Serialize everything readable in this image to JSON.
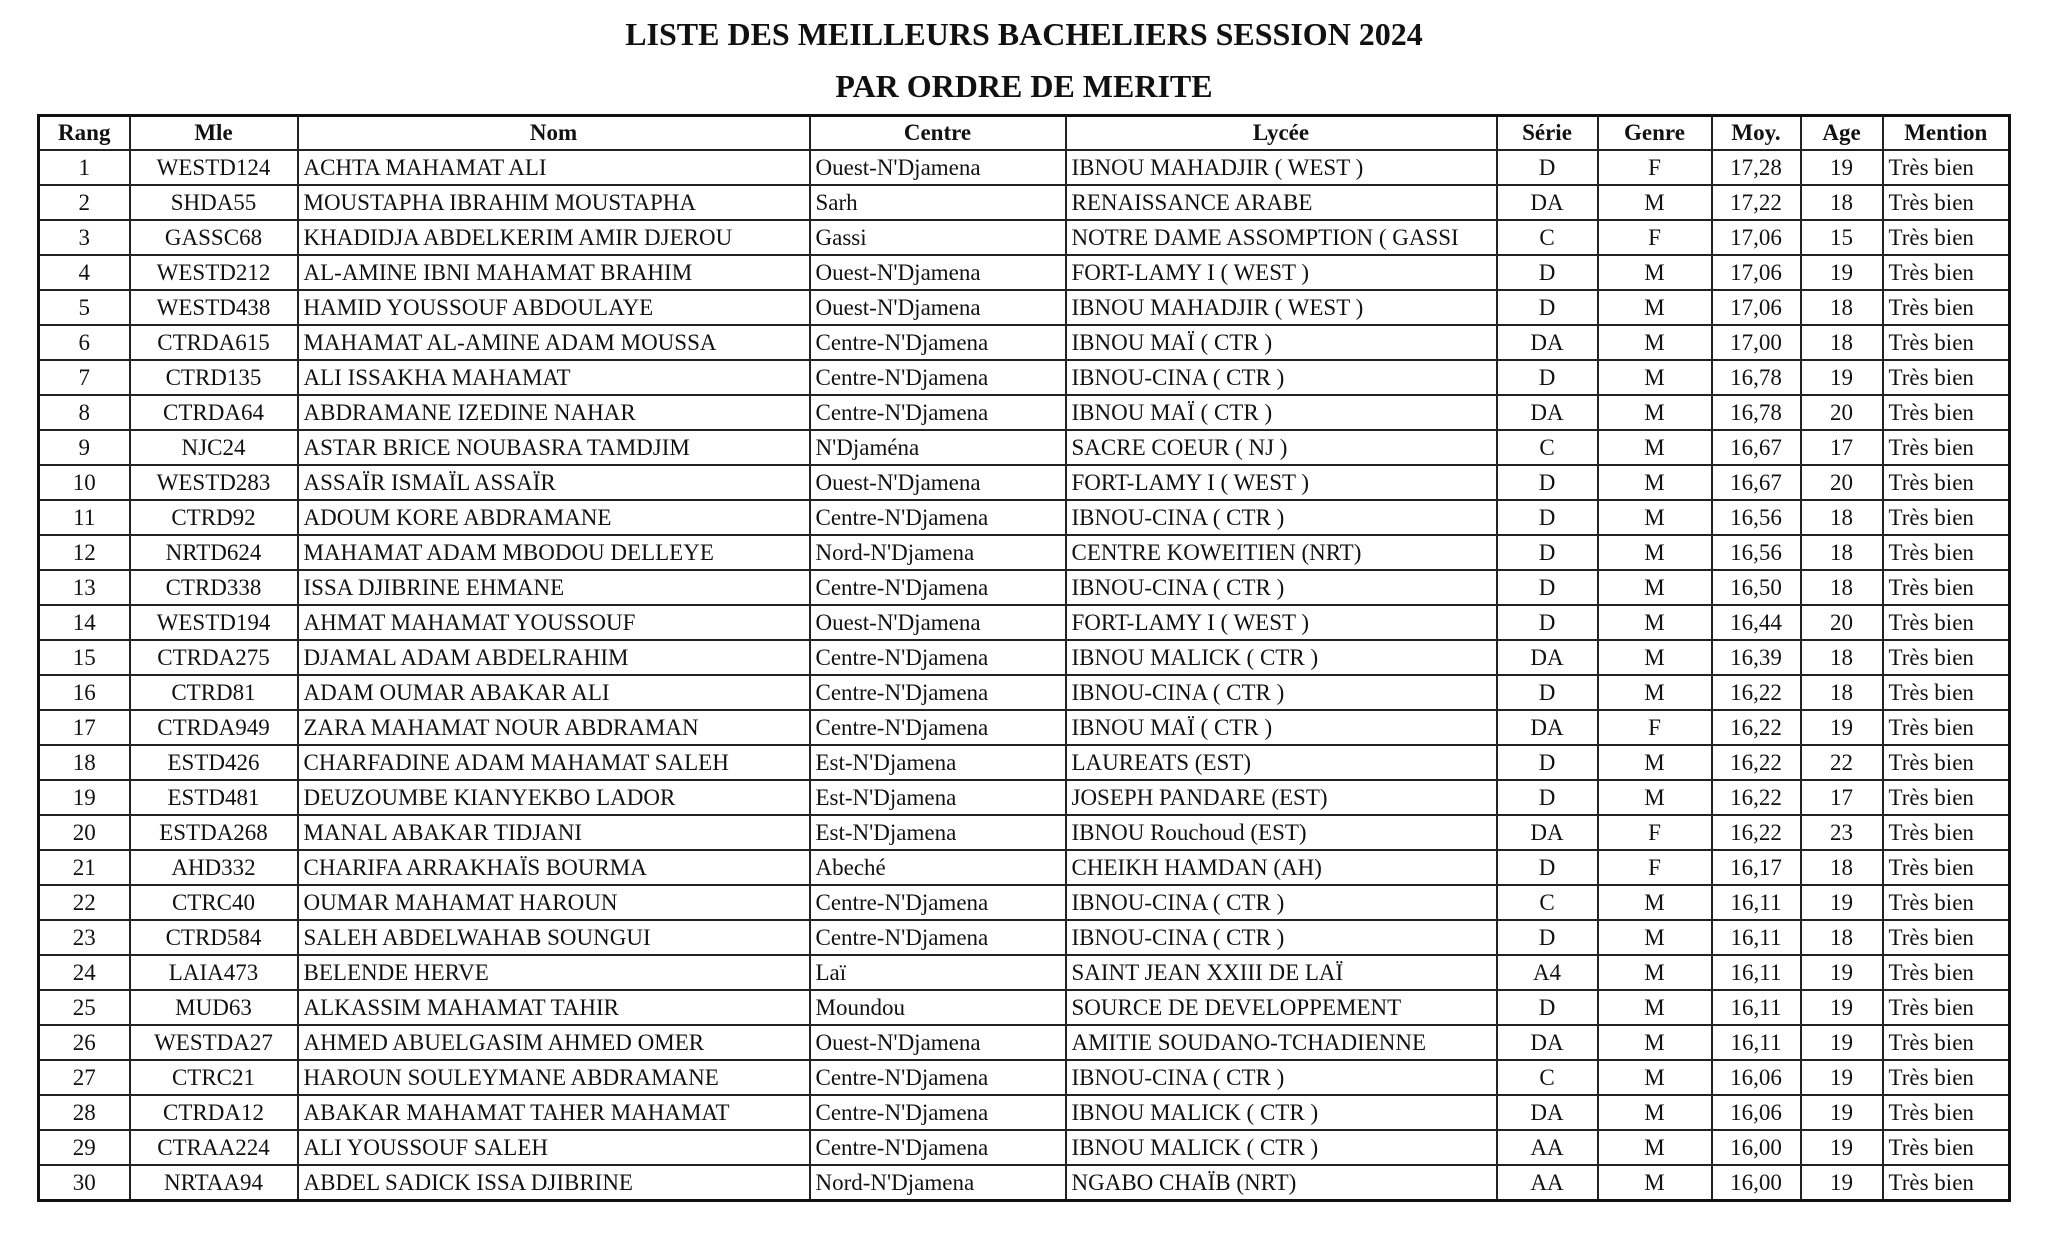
{
  "header": {
    "title": "LISTE DES MEILLEURS BACHELIERS SESSION 2024",
    "subtitle": "PAR ORDRE DE MERITE"
  },
  "table": {
    "columns": [
      "Rang",
      "Mle",
      "Nom",
      "Centre",
      "Lycée",
      "Série",
      "Genre",
      "Moy.",
      "Age",
      "Mention"
    ],
    "rows": [
      [
        "1",
        "WESTD124",
        "ACHTA MAHAMAT ALI",
        "Ouest-N'Djamena",
        "IBNOU MAHADJIR ( WEST )",
        "D",
        "F",
        "17,28",
        "19",
        "Très bien"
      ],
      [
        "2",
        "SHDA55",
        "MOUSTAPHA IBRAHIM MOUSTAPHA",
        "Sarh",
        "RENAISSANCE ARABE",
        "DA",
        "M",
        "17,22",
        "18",
        "Très bien"
      ],
      [
        "3",
        "GASSC68",
        "KHADIDJA ABDELKERIM AMIR DJEROU",
        "Gassi",
        "NOTRE DAME ASSOMPTION ( GASSI",
        "C",
        "F",
        "17,06",
        "15",
        "Très bien"
      ],
      [
        "4",
        "WESTD212",
        "AL-AMINE IBNI MAHAMAT BRAHIM",
        "Ouest-N'Djamena",
        "FORT-LAMY I ( WEST )",
        "D",
        "M",
        "17,06",
        "19",
        "Très bien"
      ],
      [
        "5",
        "WESTD438",
        "HAMID YOUSSOUF ABDOULAYE",
        "Ouest-N'Djamena",
        "IBNOU MAHADJIR ( WEST )",
        "D",
        "M",
        "17,06",
        "18",
        "Très bien"
      ],
      [
        "6",
        "CTRDA615",
        "MAHAMAT AL-AMINE ADAM MOUSSA",
        "Centre-N'Djamena",
        "IBNOU MAÏ  ( CTR )",
        "DA",
        "M",
        "17,00",
        "18",
        "Très bien"
      ],
      [
        "7",
        "CTRD135",
        "ALI ISSAKHA MAHAMAT",
        "Centre-N'Djamena",
        "IBNOU-CINA ( CTR )",
        "D",
        "M",
        "16,78",
        "19",
        "Très bien"
      ],
      [
        "8",
        "CTRDA64",
        "ABDRAMANE IZEDINE NAHAR",
        "Centre-N'Djamena",
        "IBNOU MAÏ  ( CTR )",
        "DA",
        "M",
        "16,78",
        "20",
        "Très bien"
      ],
      [
        "9",
        "NJC24",
        "ASTAR BRICE NOUBASRA TAMDJIM",
        "N'Djaména",
        "SACRE COEUR ( NJ )",
        "C",
        "M",
        "16,67",
        "17",
        "Très bien"
      ],
      [
        "10",
        "WESTD283",
        "ASSAÏR ISMAÏL ASSAÏR",
        "Ouest-N'Djamena",
        "FORT-LAMY I ( WEST )",
        "D",
        "M",
        "16,67",
        "20",
        "Très bien"
      ],
      [
        "11",
        "CTRD92",
        "ADOUM KORE ABDRAMANE",
        "Centre-N'Djamena",
        "IBNOU-CINA ( CTR )",
        "D",
        "M",
        "16,56",
        "18",
        "Très bien"
      ],
      [
        "12",
        "NRTD624",
        "MAHAMAT ADAM MBODOU DELLEYE",
        "Nord-N'Djamena",
        "CENTRE KOWEITIEN (NRT)",
        "D",
        "M",
        "16,56",
        "18",
        "Très bien"
      ],
      [
        "13",
        "CTRD338",
        "ISSA DJIBRINE EHMANE",
        "Centre-N'Djamena",
        "IBNOU-CINA ( CTR )",
        "D",
        "M",
        "16,50",
        "18",
        "Très bien"
      ],
      [
        "14",
        "WESTD194",
        "AHMAT MAHAMAT YOUSSOUF",
        "Ouest-N'Djamena",
        "FORT-LAMY I ( WEST )",
        "D",
        "M",
        "16,44",
        "20",
        "Très bien"
      ],
      [
        "15",
        "CTRDA275",
        "DJAMAL ADAM ABDELRAHIM",
        "Centre-N'Djamena",
        "IBNOU MALICK  ( CTR )",
        "DA",
        "M",
        "16,39",
        "18",
        "Très bien"
      ],
      [
        "16",
        "CTRD81",
        "ADAM OUMAR ABAKAR ALI",
        "Centre-N'Djamena",
        "IBNOU-CINA ( CTR )",
        "D",
        "M",
        "16,22",
        "18",
        "Très bien"
      ],
      [
        "17",
        "CTRDA949",
        "ZARA MAHAMAT NOUR ABDRAMAN",
        "Centre-N'Djamena",
        "IBNOU MAÏ  ( CTR )",
        "DA",
        "F",
        "16,22",
        "19",
        "Très bien"
      ],
      [
        "18",
        "ESTD426",
        "CHARFADINE ADAM MAHAMAT SALEH",
        "Est-N'Djamena",
        "LAUREATS (EST)",
        "D",
        "M",
        "16,22",
        "22",
        "Très bien"
      ],
      [
        "19",
        "ESTD481",
        "DEUZOUMBE KIANYEKBO LADOR",
        "Est-N'Djamena",
        "JOSEPH PANDARE (EST)",
        "D",
        "M",
        "16,22",
        "17",
        "Très bien"
      ],
      [
        "20",
        "ESTDA268",
        "MANAL ABAKAR TIDJANI",
        "Est-N'Djamena",
        "IBNOU Rouchoud (EST)",
        "DA",
        "F",
        "16,22",
        "23",
        "Très bien"
      ],
      [
        "21",
        "AHD332",
        "CHARIFA ARRAKHAÏS BOURMA",
        "Abeché",
        "CHEIKH HAMDAN (AH)",
        "D",
        "F",
        "16,17",
        "18",
        "Très bien"
      ],
      [
        "22",
        "CTRC40",
        "OUMAR MAHAMAT HAROUN",
        "Centre-N'Djamena",
        "IBNOU-CINA ( CTR )",
        "C",
        "M",
        "16,11",
        "19",
        "Très bien"
      ],
      [
        "23",
        "CTRD584",
        "SALEH ABDELWAHAB SOUNGUI",
        "Centre-N'Djamena",
        "IBNOU-CINA ( CTR )",
        "D",
        "M",
        "16,11",
        "18",
        "Très bien"
      ],
      [
        "24",
        "LAIA473",
        "BELENDE HERVE",
        "Laï",
        "SAINT JEAN XXIII DE LAÏ",
        "A4",
        "M",
        "16,11",
        "19",
        "Très bien"
      ],
      [
        "25",
        "MUD63",
        "ALKASSIM MAHAMAT TAHIR",
        "Moundou",
        "SOURCE DE DEVELOPPEMENT",
        "D",
        "M",
        "16,11",
        "19",
        "Très bien"
      ],
      [
        "26",
        "WESTDA27",
        "AHMED ABUELGASIM AHMED OMER",
        "Ouest-N'Djamena",
        "AMITIE SOUDANO-TCHADIENNE",
        "DA",
        "M",
        "16,11",
        "19",
        "Très bien"
      ],
      [
        "27",
        "CTRC21",
        "HAROUN SOULEYMANE ABDRAMANE",
        "Centre-N'Djamena",
        "IBNOU-CINA ( CTR )",
        "C",
        "M",
        "16,06",
        "19",
        "Très bien"
      ],
      [
        "28",
        "CTRDA12",
        "ABAKAR MAHAMAT TAHER MAHAMAT",
        "Centre-N'Djamena",
        "IBNOU MALICK  ( CTR )",
        "DA",
        "M",
        "16,06",
        "19",
        "Très bien"
      ],
      [
        "29",
        "CTRAA224",
        "ALI YOUSSOUF SALEH",
        "Centre-N'Djamena",
        "IBNOU MALICK  ( CTR )",
        "AA",
        "M",
        "16,00",
        "19",
        "Très bien"
      ],
      [
        "30",
        "NRTAA94",
        "ABDEL SADICK ISSA DJIBRINE",
        "Nord-N'Djamena",
        "NGABO CHAÏB (NRT)",
        "AA",
        "M",
        "16,00",
        "19",
        "Très bien"
      ]
    ]
  }
}
